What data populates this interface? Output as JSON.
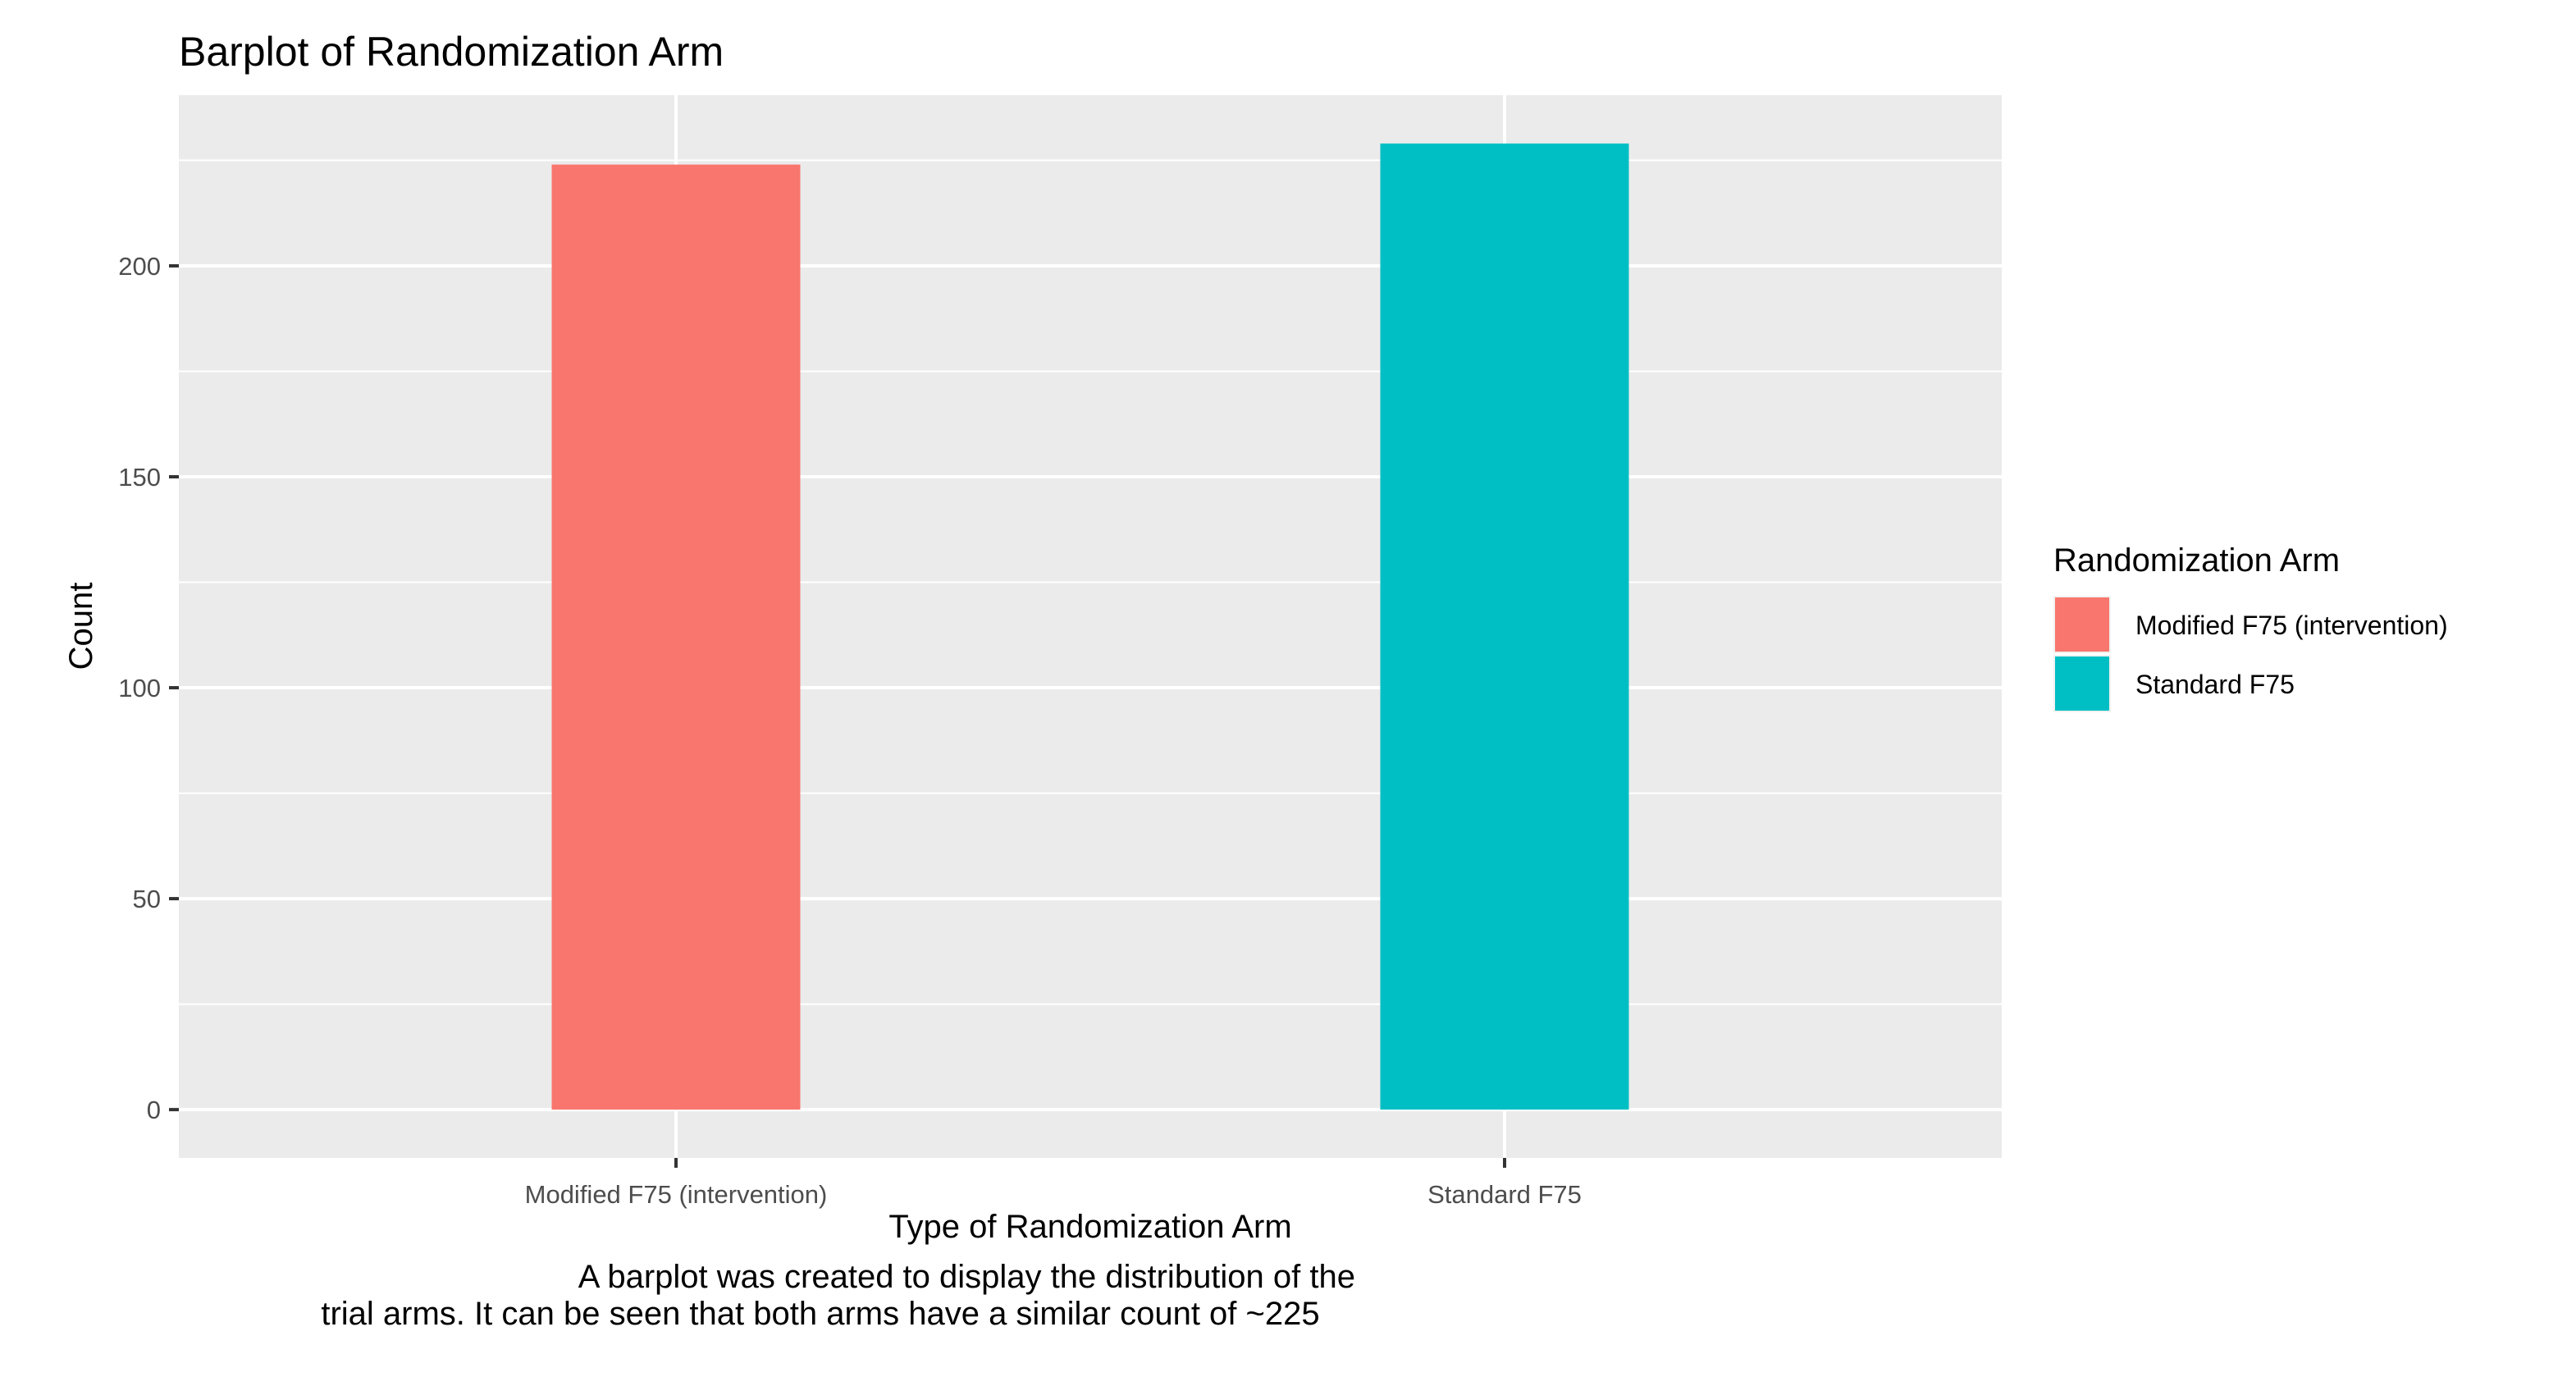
{
  "chart_data": {
    "type": "bar",
    "title": "Barplot of Randomization Arm",
    "xlabel": "Type of Randomization Arm",
    "ylabel": "Count",
    "categories": [
      "Modified F75 (intervention)",
      "Standard F75"
    ],
    "values": [
      224,
      229
    ],
    "colors": [
      "#F8766D",
      "#00BFC4"
    ],
    "ylim": [
      -11.45,
      240.45
    ],
    "yticks": [
      0,
      50,
      100,
      150,
      200
    ],
    "grid": true,
    "legend": {
      "title": "Randomization Arm",
      "position": "right",
      "entries": [
        "Modified F75 (intervention)",
        "Standard F75"
      ]
    },
    "caption": [
      "A barplot was created to display the distribution of the",
      "trial arms. It can be seen that both arms have a similar count of ~225"
    ]
  }
}
